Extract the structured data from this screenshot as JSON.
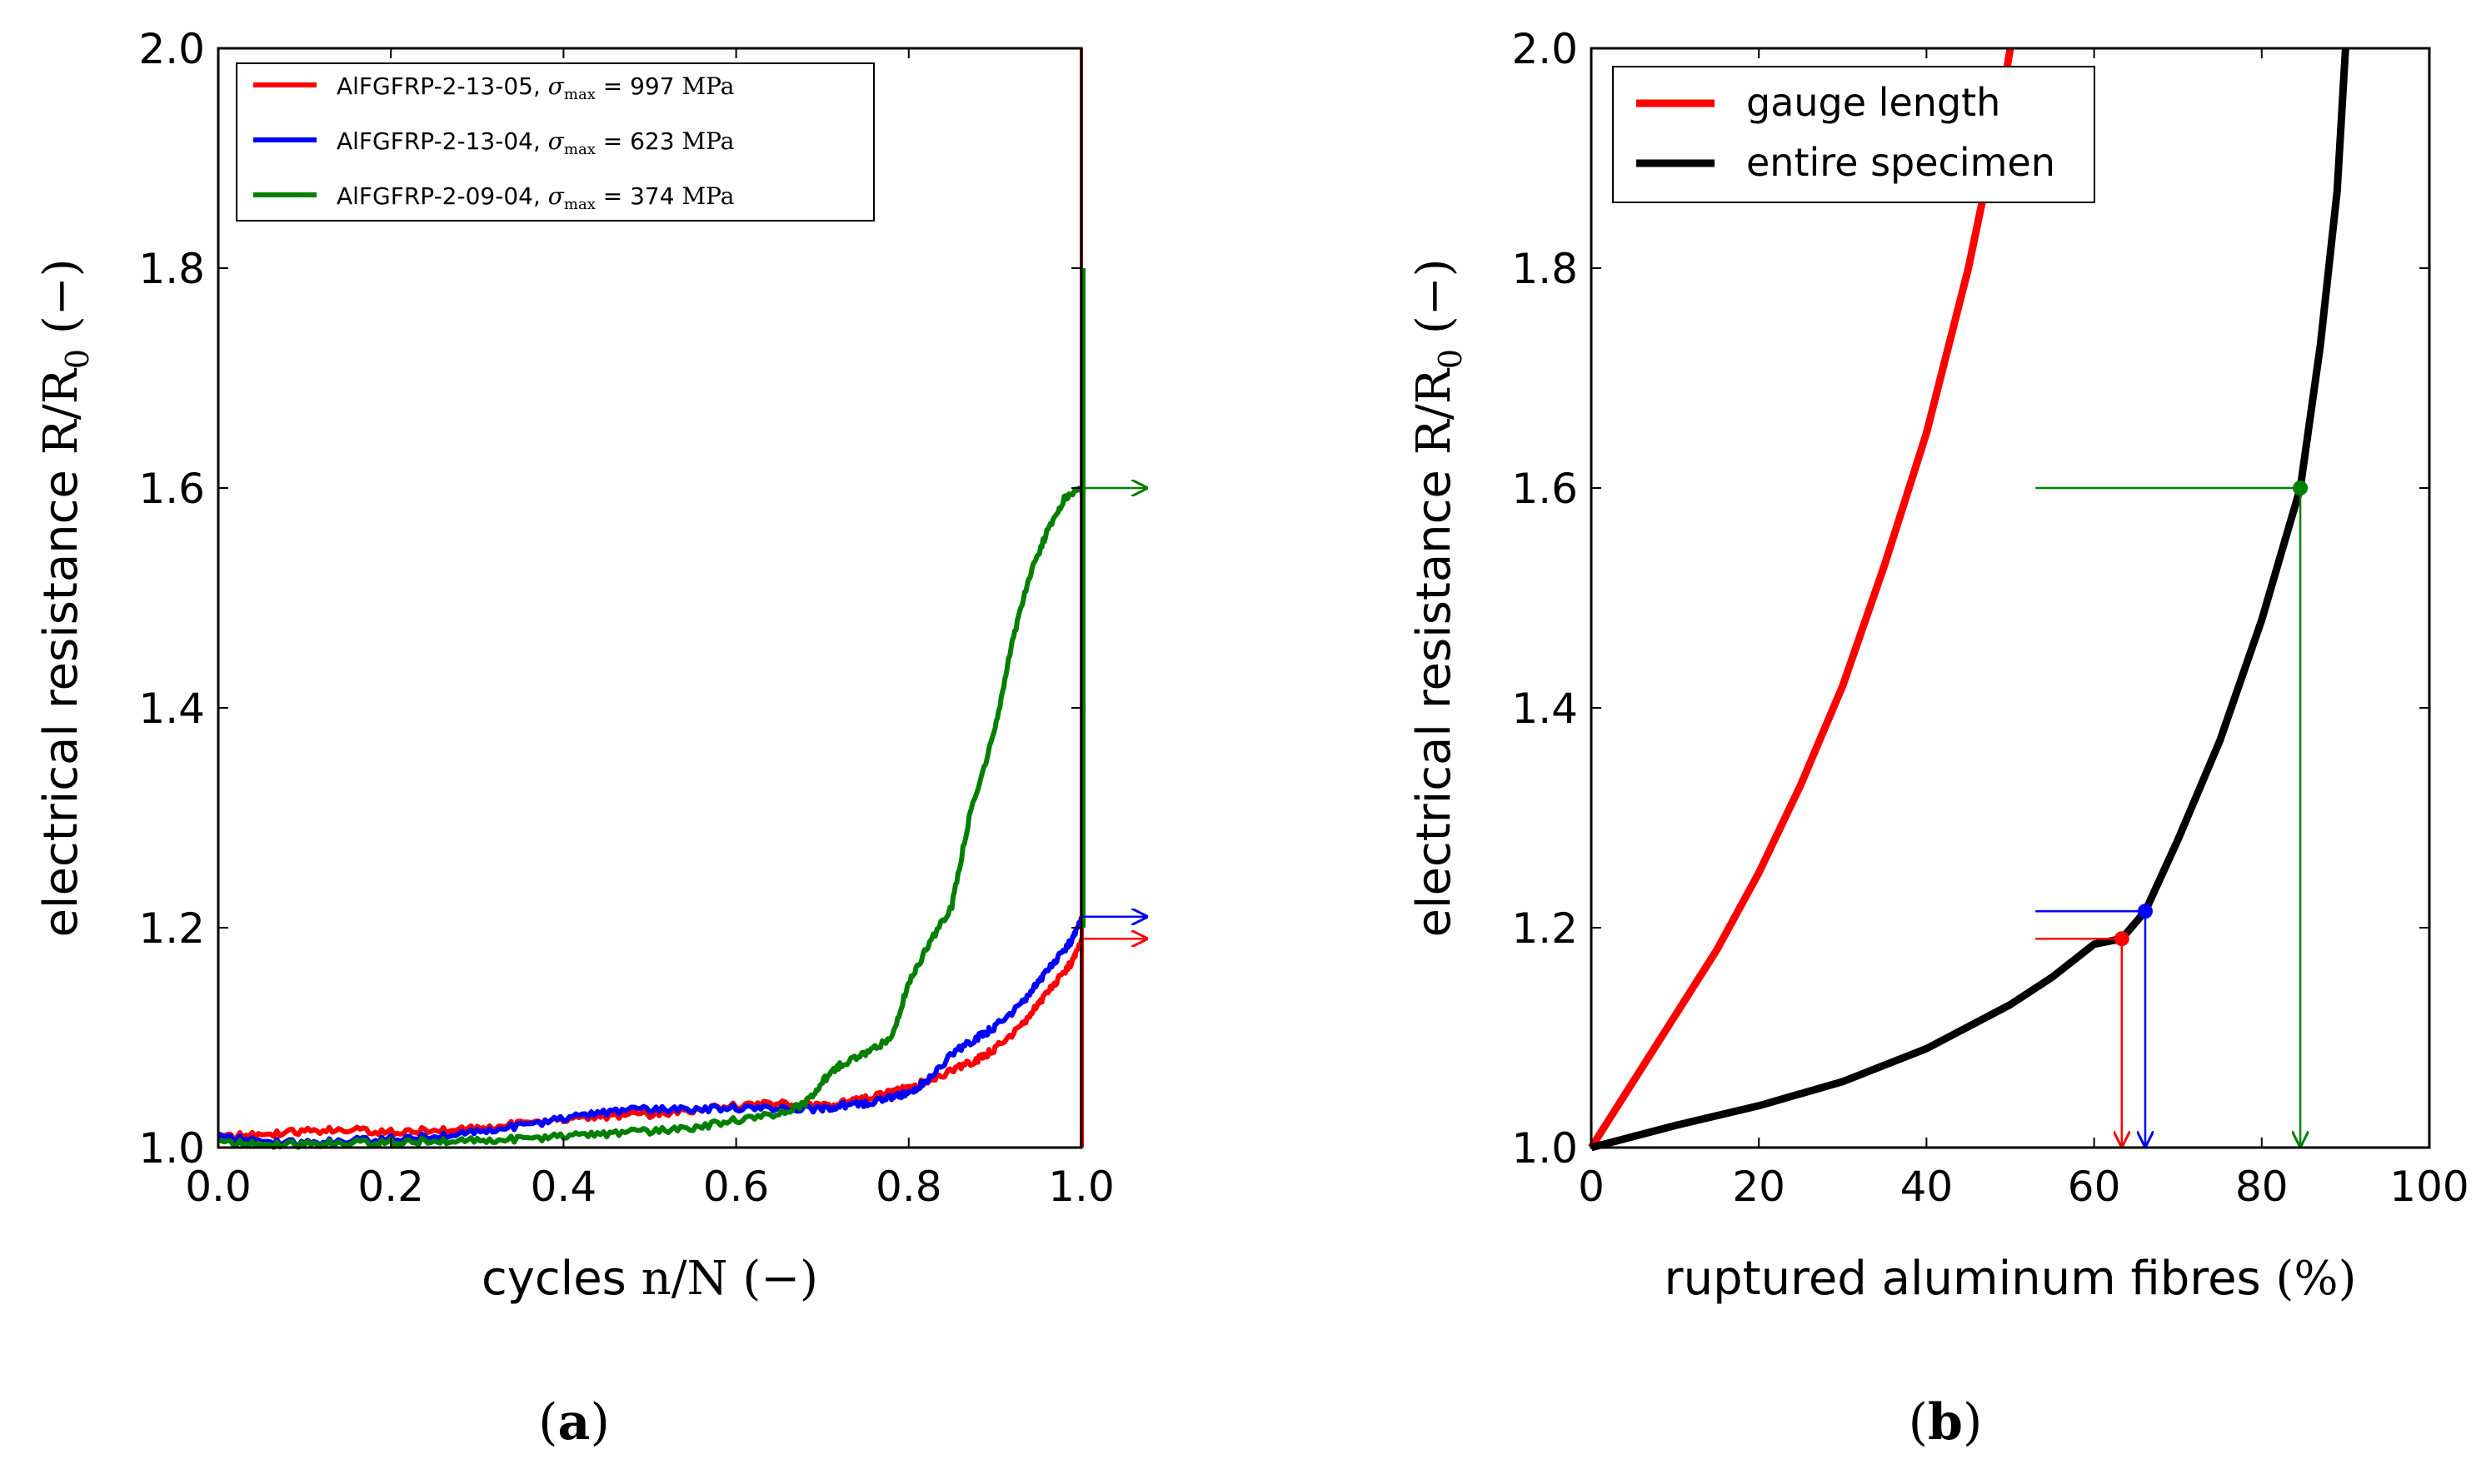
{
  "chart_data": [
    {
      "panel": "a",
      "panel_letter": "a",
      "type": "line",
      "xlabel": "cycles",
      "xlabel_math": "n/N (−)",
      "ylabel": "electrical resistance",
      "ylabel_math": "R/R",
      "ylabel_sub": "0",
      "ylabel_unit": "(−)",
      "xlim": [
        0,
        1
      ],
      "ylim": [
        1,
        2
      ],
      "xticks": [
        "0.0",
        "0.2",
        "0.4",
        "0.6",
        "0.8",
        "1.0"
      ],
      "yticks": [
        "1.0",
        "1.2",
        "1.4",
        "1.6",
        "1.8",
        "2.0"
      ],
      "legend_position": "top-left",
      "series": [
        {
          "name": "AlFGFRP-2-13-05",
          "sigma_label": "σ",
          "sigma_sub": "max",
          "sigma_value": "= 997",
          "sigma_unit": "MPa",
          "color": "#ff0000",
          "x": [
            0.0,
            0.05,
            0.1,
            0.15,
            0.2,
            0.25,
            0.3,
            0.35,
            0.4,
            0.45,
            0.5,
            0.55,
            0.6,
            0.65,
            0.7,
            0.72,
            0.75,
            0.78,
            0.8,
            0.82,
            0.85,
            0.88,
            0.9,
            0.93,
            0.95,
            0.97,
            0.99,
            1.0
          ],
          "y": [
            1.01,
            1.012,
            1.015,
            1.016,
            1.014,
            1.016,
            1.018,
            1.022,
            1.025,
            1.028,
            1.03,
            1.034,
            1.038,
            1.04,
            1.038,
            1.04,
            1.045,
            1.05,
            1.055,
            1.06,
            1.07,
            1.08,
            1.09,
            1.11,
            1.13,
            1.15,
            1.17,
            1.19
          ],
          "final_value": 1.19
        },
        {
          "name": "AlFGFRP-2-13-04",
          "sigma_label": "σ",
          "sigma_sub": "max",
          "sigma_value": "= 623",
          "sigma_unit": "MPa",
          "color": "#0000ff",
          "x": [
            0.0,
            0.05,
            0.1,
            0.15,
            0.2,
            0.25,
            0.3,
            0.35,
            0.4,
            0.45,
            0.5,
            0.55,
            0.6,
            0.65,
            0.7,
            0.72,
            0.75,
            0.78,
            0.8,
            0.82,
            0.85,
            0.88,
            0.9,
            0.93,
            0.95,
            0.97,
            0.99,
            1.0
          ],
          "y": [
            1.01,
            1.006,
            1.004,
            1.006,
            1.008,
            1.01,
            1.015,
            1.02,
            1.026,
            1.032,
            1.035,
            1.035,
            1.036,
            1.035,
            1.035,
            1.038,
            1.04,
            1.045,
            1.05,
            1.06,
            1.085,
            1.1,
            1.11,
            1.13,
            1.15,
            1.17,
            1.19,
            1.21
          ],
          "final_value": 1.21
        },
        {
          "name": "AlFGFRP-2-09-04",
          "sigma_label": "σ",
          "sigma_sub": "max",
          "sigma_value": "= 374",
          "sigma_unit": "MPa",
          "color": "#007f00",
          "x": [
            0.0,
            0.05,
            0.1,
            0.15,
            0.2,
            0.25,
            0.3,
            0.35,
            0.4,
            0.45,
            0.5,
            0.55,
            0.6,
            0.65,
            0.68,
            0.7,
            0.72,
            0.75,
            0.78,
            0.8,
            0.82,
            0.85,
            0.87,
            0.9,
            0.92,
            0.94,
            0.96,
            0.98,
            1.0
          ],
          "y": [
            1.005,
            1.003,
            1.003,
            1.004,
            1.005,
            1.006,
            1.007,
            1.008,
            1.01,
            1.012,
            1.015,
            1.018,
            1.025,
            1.03,
            1.04,
            1.06,
            1.075,
            1.085,
            1.1,
            1.15,
            1.18,
            1.22,
            1.3,
            1.38,
            1.46,
            1.52,
            1.56,
            1.59,
            1.6
          ],
          "final_value": 1.6
        }
      ],
      "spike": {
        "x": 1.0,
        "y_top": 2.0,
        "color": "#ff0000"
      }
    },
    {
      "panel": "b",
      "panel_letter": "b",
      "type": "line",
      "xlabel": "ruptured aluminum fibres",
      "xlabel_unit": "(%)",
      "ylabel": "electrical resistance",
      "ylabel_math": "R/R",
      "ylabel_sub": "0",
      "ylabel_unit": "(−)",
      "xlim": [
        0,
        100
      ],
      "ylim": [
        1,
        2
      ],
      "xticks": [
        "0",
        "20",
        "40",
        "60",
        "80",
        "100"
      ],
      "yticks": [
        "1.0",
        "1.2",
        "1.4",
        "1.6",
        "1.8",
        "2.0"
      ],
      "legend_position": "top-left",
      "series": [
        {
          "name": "gauge length",
          "color": "#ff0000",
          "x": [
            0,
            5,
            10,
            15,
            20,
            25,
            30,
            35,
            40,
            42,
            45,
            48,
            50
          ],
          "y": [
            1.0,
            1.06,
            1.12,
            1.18,
            1.25,
            1.33,
            1.42,
            1.53,
            1.65,
            1.71,
            1.8,
            1.91,
            2.0
          ]
        },
        {
          "name": "entire specimen",
          "color": "#000000",
          "x": [
            0,
            10,
            20,
            30,
            40,
            50,
            55,
            60,
            63.3,
            66.1,
            70,
            75,
            80,
            84.6,
            87,
            89,
            90
          ],
          "y": [
            1.0,
            1.02,
            1.038,
            1.06,
            1.09,
            1.13,
            1.155,
            1.185,
            1.19,
            1.215,
            1.28,
            1.37,
            1.48,
            1.6,
            1.73,
            1.87,
            2.0
          ]
        }
      ],
      "markers": [
        {
          "x": 63.3,
          "y": 1.19,
          "color": "#ff0000"
        },
        {
          "x": 66.1,
          "y": 1.215,
          "color": "#0000ff"
        },
        {
          "x": 84.6,
          "y": 1.6,
          "color": "#007f00"
        }
      ]
    }
  ]
}
